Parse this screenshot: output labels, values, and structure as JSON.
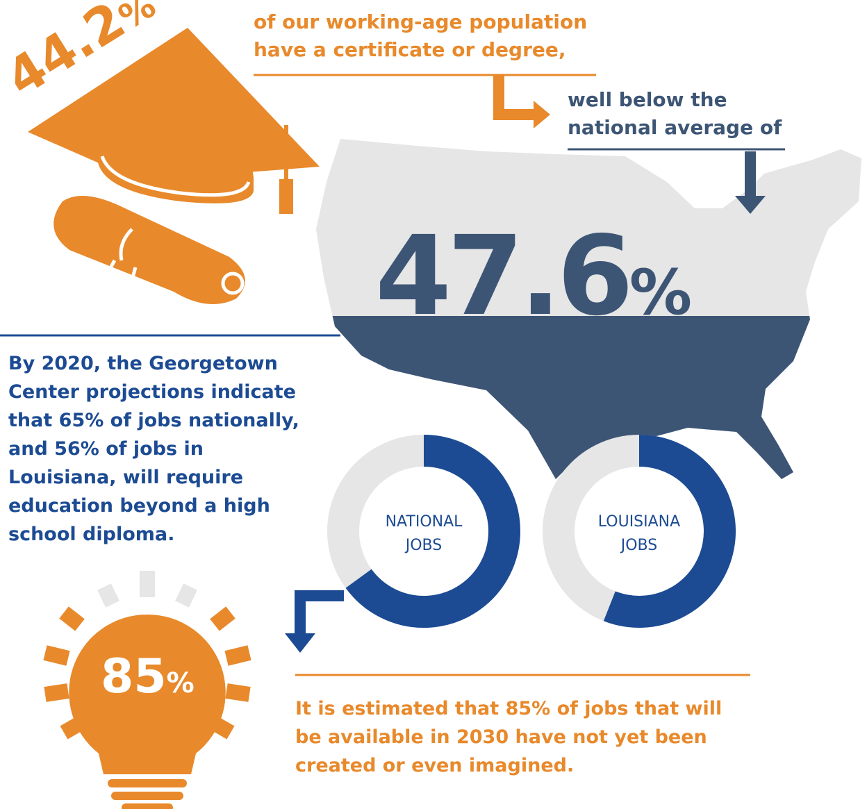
{
  "top_statement": {
    "stat": {
      "number": "44.2",
      "unit": "%"
    },
    "lines": [
      "of our working-age population",
      "have a certificate or degree,"
    ]
  },
  "comparison": {
    "lines": [
      "well below the",
      "national average of"
    ],
    "stat": {
      "number": "47.6",
      "unit": "%"
    }
  },
  "projection": {
    "lines": [
      "By 2020, the Georgetown",
      "Center projections indicate",
      "that 65% of jobs nationally,",
      "and 56% of jobs in",
      "Louisiana, will require",
      "education beyond a high",
      "school diploma."
    ]
  },
  "donuts": [
    {
      "label_lines": [
        "NATIONAL",
        "JOBS"
      ],
      "value": 65
    },
    {
      "label_lines": [
        "LOUISIANA",
        "JOBS"
      ],
      "value": 56
    }
  ],
  "future": {
    "stat": {
      "number": "85",
      "unit": "%"
    },
    "lines": [
      "It is estimated that 85% of jobs that will",
      "be available in 2030 have not yet been",
      "created or even imagined."
    ]
  }
}
